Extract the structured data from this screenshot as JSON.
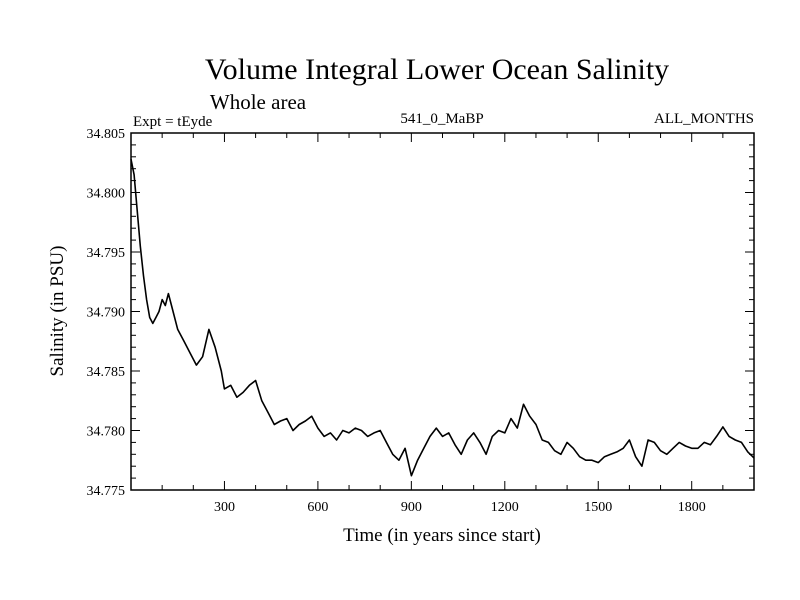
{
  "chart_data": {
    "type": "line",
    "title": "Volume Integral Lower Ocean Salinity",
    "subtitle": "Whole area",
    "experiment_label": "Expt = tEyde",
    "run_label": "541_0_MaBP",
    "season_label": "ALL_MONTHS",
    "xlabel": "Time (in years since start)",
    "ylabel": "Salinity (in PSU)",
    "xlim": [
      0,
      2000
    ],
    "ylim": [
      34.775,
      34.805
    ],
    "xticks": [
      300,
      600,
      900,
      1200,
      1500,
      1800
    ],
    "yticks": [
      "34.775",
      "34.780",
      "34.785",
      "34.790",
      "34.795",
      "34.800",
      "34.805"
    ],
    "grid": false,
    "series": [
      {
        "name": "Volume integral lower ocean salinity",
        "x": [
          0,
          10,
          20,
          30,
          40,
          50,
          60,
          70,
          80,
          90,
          100,
          110,
          120,
          130,
          150,
          170,
          190,
          210,
          230,
          250,
          270,
          290,
          300,
          320,
          340,
          360,
          380,
          400,
          420,
          440,
          460,
          480,
          500,
          520,
          540,
          560,
          580,
          600,
          620,
          640,
          660,
          680,
          700,
          720,
          740,
          760,
          780,
          800,
          820,
          840,
          860,
          880,
          900,
          920,
          940,
          960,
          980,
          1000,
          1020,
          1040,
          1060,
          1080,
          1100,
          1120,
          1140,
          1160,
          1180,
          1200,
          1220,
          1240,
          1260,
          1280,
          1300,
          1320,
          1340,
          1360,
          1380,
          1400,
          1420,
          1440,
          1460,
          1480,
          1500,
          1520,
          1540,
          1560,
          1580,
          1600,
          1620,
          1640,
          1660,
          1680,
          1700,
          1720,
          1740,
          1760,
          1780,
          1800,
          1820,
          1840,
          1860,
          1880,
          1900,
          1920,
          1940,
          1960,
          1980,
          2000
        ],
        "values": [
          34.8028,
          34.8015,
          34.7985,
          34.7955,
          34.793,
          34.791,
          34.7895,
          34.789,
          34.7895,
          34.79,
          34.791,
          34.7905,
          34.7915,
          34.7905,
          34.7885,
          34.7875,
          34.7865,
          34.7855,
          34.7862,
          34.7885,
          34.787,
          34.785,
          34.7835,
          34.7838,
          34.7828,
          34.7832,
          34.7838,
          34.7842,
          34.7825,
          34.7815,
          34.7805,
          34.7808,
          34.781,
          34.78,
          34.7805,
          34.7808,
          34.7812,
          34.7802,
          34.7795,
          34.7798,
          34.7792,
          34.78,
          34.7798,
          34.7802,
          34.78,
          34.7795,
          34.7798,
          34.78,
          34.779,
          34.778,
          34.7775,
          34.7785,
          34.7762,
          34.7775,
          34.7785,
          34.7795,
          34.7802,
          34.7795,
          34.7798,
          34.7788,
          34.778,
          34.7792,
          34.7798,
          34.779,
          34.778,
          34.7795,
          34.78,
          34.7798,
          34.781,
          34.7802,
          34.7822,
          34.7812,
          34.7805,
          34.7792,
          34.779,
          34.7783,
          34.778,
          34.779,
          34.7785,
          34.7778,
          34.7775,
          34.7775,
          34.7773,
          34.7778,
          34.778,
          34.7782,
          34.7785,
          34.7792,
          34.7778,
          34.777,
          34.7792,
          34.779,
          34.7783,
          34.778,
          34.7785,
          34.779,
          34.7787,
          34.7785,
          34.7785,
          34.779,
          34.7788,
          34.7795,
          34.7803,
          34.7795,
          34.7792,
          34.779,
          34.7782,
          34.7777
        ]
      }
    ]
  }
}
